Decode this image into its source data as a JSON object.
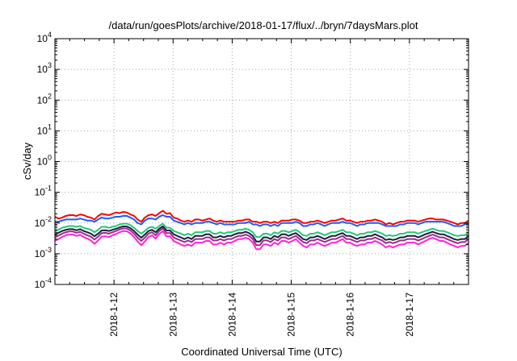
{
  "chart_data": {
    "type": "line",
    "title": "/data/run/goesPlots/archive/2018-01-17/flux/../bryn/7daysMars.plot",
    "xlabel": "Coordinated Universal Time (UTC)",
    "ylabel": "cSv/day",
    "x_start": "2018-01-11",
    "x_end": "2018-01-18",
    "xlim_days": [
      0.0,
      7.0
    ],
    "x_ticks": [
      {
        "label": "2018-1-12",
        "day": 1
      },
      {
        "label": "2018-1-13",
        "day": 2
      },
      {
        "label": "2018-1-14",
        "day": 3
      },
      {
        "label": "2018-1-15",
        "day": 4
      },
      {
        "label": "2018-1-16",
        "day": 5
      },
      {
        "label": "2018-1-17",
        "day": 6
      }
    ],
    "y_scale": "log",
    "ylim": [
      0.0001,
      10000
    ],
    "y_ticks": [
      {
        "base": "10",
        "exp": "4",
        "value": 10000
      },
      {
        "base": "10",
        "exp": "3",
        "value": 1000
      },
      {
        "base": "10",
        "exp": "2",
        "value": 100
      },
      {
        "base": "10",
        "exp": "1",
        "value": 10
      },
      {
        "base": "10",
        "exp": "0",
        "value": 1
      },
      {
        "base": "10",
        "exp": "-1",
        "value": 0.1
      },
      {
        "base": "10",
        "exp": "-2",
        "value": 0.01
      },
      {
        "base": "10",
        "exp": "-3",
        "value": 0.001
      },
      {
        "base": "10",
        "exp": "-4",
        "value": 0.0001
      }
    ],
    "grid": true,
    "legend": "none",
    "series": [
      {
        "color": "#ff0000",
        "values": [
          0.016,
          0.014,
          0.015,
          0.017,
          0.018,
          0.018,
          0.017,
          0.019,
          0.018,
          0.016,
          0.015,
          0.013,
          0.017,
          0.02,
          0.019,
          0.018,
          0.02,
          0.022,
          0.021,
          0.023,
          0.022,
          0.019,
          0.017,
          0.013,
          0.011,
          0.015,
          0.018,
          0.019,
          0.017,
          0.021,
          0.025,
          0.02,
          0.021,
          0.015,
          0.014,
          0.012,
          0.011,
          0.012,
          0.011,
          0.013,
          0.013,
          0.012,
          0.013,
          0.014,
          0.012,
          0.011,
          0.012,
          0.011,
          0.011,
          0.011,
          0.011,
          0.012,
          0.012,
          0.013,
          0.013,
          0.011,
          0.011,
          0.01,
          0.011,
          0.011,
          0.01,
          0.011,
          0.01,
          0.012,
          0.012,
          0.012,
          0.013,
          0.013,
          0.012,
          0.01,
          0.01,
          0.011,
          0.011,
          0.012,
          0.011,
          0.01,
          0.011,
          0.012,
          0.012,
          0.013,
          0.014,
          0.012,
          0.012,
          0.011,
          0.01,
          0.011,
          0.011,
          0.012,
          0.012,
          0.013,
          0.012,
          0.011,
          0.009,
          0.01,
          0.009,
          0.01,
          0.011,
          0.011,
          0.012,
          0.012,
          0.012,
          0.011,
          0.012,
          0.013,
          0.014,
          0.014,
          0.013,
          0.013,
          0.013,
          0.012,
          0.011,
          0.01,
          0.009,
          0.01,
          0.01,
          0.012
        ]
      },
      {
        "color": "#1a5cff",
        "values": [
          0.011,
          0.011,
          0.012,
          0.013,
          0.013,
          0.013,
          0.013,
          0.014,
          0.013,
          0.012,
          0.012,
          0.011,
          0.013,
          0.015,
          0.014,
          0.014,
          0.015,
          0.016,
          0.016,
          0.017,
          0.017,
          0.015,
          0.013,
          0.01,
          0.009,
          0.012,
          0.014,
          0.014,
          0.013,
          0.016,
          0.018,
          0.016,
          0.016,
          0.012,
          0.011,
          0.01,
          0.009,
          0.01,
          0.009,
          0.01,
          0.01,
          0.01,
          0.011,
          0.011,
          0.01,
          0.009,
          0.01,
          0.009,
          0.009,
          0.009,
          0.009,
          0.01,
          0.01,
          0.01,
          0.011,
          0.009,
          0.009,
          0.008,
          0.009,
          0.009,
          0.008,
          0.009,
          0.008,
          0.01,
          0.01,
          0.01,
          0.01,
          0.011,
          0.01,
          0.008,
          0.008,
          0.009,
          0.009,
          0.01,
          0.009,
          0.008,
          0.009,
          0.01,
          0.01,
          0.01,
          0.011,
          0.01,
          0.01,
          0.009,
          0.008,
          0.009,
          0.009,
          0.01,
          0.01,
          0.01,
          0.01,
          0.009,
          0.008,
          0.008,
          0.008,
          0.008,
          0.009,
          0.009,
          0.01,
          0.01,
          0.01,
          0.009,
          0.01,
          0.011,
          0.011,
          0.011,
          0.011,
          0.011,
          0.011,
          0.01,
          0.009,
          0.008,
          0.008,
          0.008,
          0.009,
          0.01
        ]
      },
      {
        "color": "#22c77a",
        "values": [
          0.0055,
          0.006,
          0.007,
          0.0075,
          0.008,
          0.008,
          0.0075,
          0.008,
          0.007,
          0.0065,
          0.006,
          0.005,
          0.006,
          0.0075,
          0.0075,
          0.007,
          0.0075,
          0.008,
          0.009,
          0.0095,
          0.0095,
          0.0085,
          0.007,
          0.0055,
          0.0045,
          0.0055,
          0.007,
          0.0075,
          0.0065,
          0.008,
          0.0095,
          0.007,
          0.007,
          0.0055,
          0.005,
          0.0045,
          0.004,
          0.0045,
          0.004,
          0.005,
          0.005,
          0.005,
          0.0055,
          0.0055,
          0.0045,
          0.0045,
          0.005,
          0.0045,
          0.005,
          0.005,
          0.0055,
          0.006,
          0.006,
          0.0065,
          0.006,
          0.005,
          0.0035,
          0.0035,
          0.0045,
          0.0045,
          0.004,
          0.005,
          0.0045,
          0.0055,
          0.0055,
          0.005,
          0.0055,
          0.006,
          0.005,
          0.004,
          0.0038,
          0.0045,
          0.0045,
          0.005,
          0.0045,
          0.004,
          0.0045,
          0.005,
          0.005,
          0.0055,
          0.006,
          0.005,
          0.005,
          0.0045,
          0.004,
          0.0045,
          0.0045,
          0.005,
          0.005,
          0.0055,
          0.005,
          0.0045,
          0.0038,
          0.004,
          0.0038,
          0.004,
          0.0045,
          0.0045,
          0.005,
          0.005,
          0.005,
          0.0045,
          0.005,
          0.0055,
          0.006,
          0.0065,
          0.006,
          0.0055,
          0.0055,
          0.005,
          0.0045,
          0.004,
          0.0038,
          0.004,
          0.004,
          0.005
        ]
      },
      {
        "color": "#1e1e3c",
        "values": [
          0.0042,
          0.0048,
          0.0055,
          0.006,
          0.0063,
          0.0063,
          0.0058,
          0.0063,
          0.0055,
          0.005,
          0.0045,
          0.0037,
          0.0045,
          0.0057,
          0.0058,
          0.0055,
          0.006,
          0.0065,
          0.0072,
          0.0078,
          0.0077,
          0.0068,
          0.0055,
          0.0042,
          0.0033,
          0.0042,
          0.0055,
          0.006,
          0.005,
          0.0065,
          0.0078,
          0.0057,
          0.0057,
          0.0043,
          0.0038,
          0.0034,
          0.003,
          0.0034,
          0.003,
          0.0038,
          0.0038,
          0.0038,
          0.0043,
          0.0043,
          0.0034,
          0.0034,
          0.0038,
          0.0034,
          0.0038,
          0.0038,
          0.0043,
          0.0047,
          0.0047,
          0.0052,
          0.0047,
          0.0038,
          0.0025,
          0.0025,
          0.0034,
          0.0034,
          0.003,
          0.0038,
          0.0034,
          0.0043,
          0.0043,
          0.0038,
          0.0043,
          0.0047,
          0.0038,
          0.003,
          0.0028,
          0.0034,
          0.0034,
          0.0038,
          0.0034,
          0.003,
          0.0034,
          0.0038,
          0.0038,
          0.0043,
          0.0047,
          0.0038,
          0.0038,
          0.0034,
          0.003,
          0.0034,
          0.0034,
          0.0038,
          0.0038,
          0.0043,
          0.0038,
          0.0034,
          0.0028,
          0.003,
          0.0028,
          0.003,
          0.0034,
          0.0034,
          0.0038,
          0.0038,
          0.0038,
          0.0034,
          0.0038,
          0.0043,
          0.0047,
          0.0052,
          0.0047,
          0.0043,
          0.0043,
          0.0038,
          0.0034,
          0.003,
          0.0028,
          0.003,
          0.003,
          0.0038
        ]
      },
      {
        "color": "#a0288c",
        "values": [
          0.0034,
          0.0039,
          0.0045,
          0.005,
          0.0053,
          0.0053,
          0.0048,
          0.0052,
          0.0045,
          0.004,
          0.0036,
          0.0029,
          0.0036,
          0.0047,
          0.0048,
          0.0045,
          0.005,
          0.0055,
          0.0062,
          0.0067,
          0.0066,
          0.0057,
          0.0045,
          0.0033,
          0.0026,
          0.0033,
          0.0045,
          0.005,
          0.004,
          0.0055,
          0.0067,
          0.0047,
          0.0047,
          0.0034,
          0.003,
          0.0027,
          0.0024,
          0.0027,
          0.0024,
          0.003,
          0.003,
          0.003,
          0.0034,
          0.0034,
          0.0027,
          0.0027,
          0.003,
          0.0027,
          0.003,
          0.003,
          0.0034,
          0.0038,
          0.0038,
          0.0042,
          0.0038,
          0.003,
          0.0019,
          0.0019,
          0.0027,
          0.0027,
          0.0024,
          0.003,
          0.0027,
          0.0034,
          0.0034,
          0.003,
          0.0034,
          0.0038,
          0.003,
          0.0024,
          0.0022,
          0.0027,
          0.0027,
          0.003,
          0.0027,
          0.0024,
          0.0027,
          0.003,
          0.003,
          0.0034,
          0.0038,
          0.003,
          0.003,
          0.0027,
          0.0024,
          0.0027,
          0.0027,
          0.003,
          0.003,
          0.0034,
          0.003,
          0.0027,
          0.0022,
          0.0024,
          0.0022,
          0.0024,
          0.0027,
          0.0027,
          0.003,
          0.003,
          0.003,
          0.0027,
          0.003,
          0.0034,
          0.0038,
          0.0042,
          0.0038,
          0.0034,
          0.0034,
          0.003,
          0.0027,
          0.0024,
          0.0022,
          0.0024,
          0.0024,
          0.003
        ]
      },
      {
        "color": "#ff22dd",
        "values": [
          0.0026,
          0.003,
          0.0035,
          0.004,
          0.0042,
          0.0042,
          0.0038,
          0.0041,
          0.0035,
          0.0031,
          0.0027,
          0.0021,
          0.0027,
          0.0036,
          0.0037,
          0.0035,
          0.004,
          0.0044,
          0.005,
          0.0055,
          0.0054,
          0.0046,
          0.0035,
          0.0025,
          0.0019,
          0.0025,
          0.0035,
          0.004,
          0.0031,
          0.0044,
          0.0054,
          0.0037,
          0.0037,
          0.0026,
          0.0023,
          0.002,
          0.0018,
          0.002,
          0.0018,
          0.0023,
          0.0023,
          0.0023,
          0.0026,
          0.0026,
          0.002,
          0.002,
          0.0023,
          0.002,
          0.0023,
          0.0023,
          0.0026,
          0.003,
          0.003,
          0.0033,
          0.003,
          0.0023,
          0.0014,
          0.0014,
          0.002,
          0.002,
          0.0018,
          0.0023,
          0.002,
          0.0026,
          0.0026,
          0.0023,
          0.0026,
          0.003,
          0.0023,
          0.0018,
          0.0016,
          0.002,
          0.002,
          0.0023,
          0.002,
          0.0018,
          0.002,
          0.0023,
          0.0023,
          0.0026,
          0.003,
          0.0023,
          0.0023,
          0.002,
          0.0018,
          0.002,
          0.002,
          0.0023,
          0.0023,
          0.0026,
          0.0023,
          0.002,
          0.0016,
          0.0018,
          0.0016,
          0.0018,
          0.002,
          0.002,
          0.0023,
          0.0023,
          0.0023,
          0.002,
          0.0023,
          0.0026,
          0.003,
          0.0033,
          0.003,
          0.0026,
          0.0026,
          0.0023,
          0.002,
          0.0018,
          0.0016,
          0.0018,
          0.0018,
          0.0023
        ]
      }
    ]
  }
}
